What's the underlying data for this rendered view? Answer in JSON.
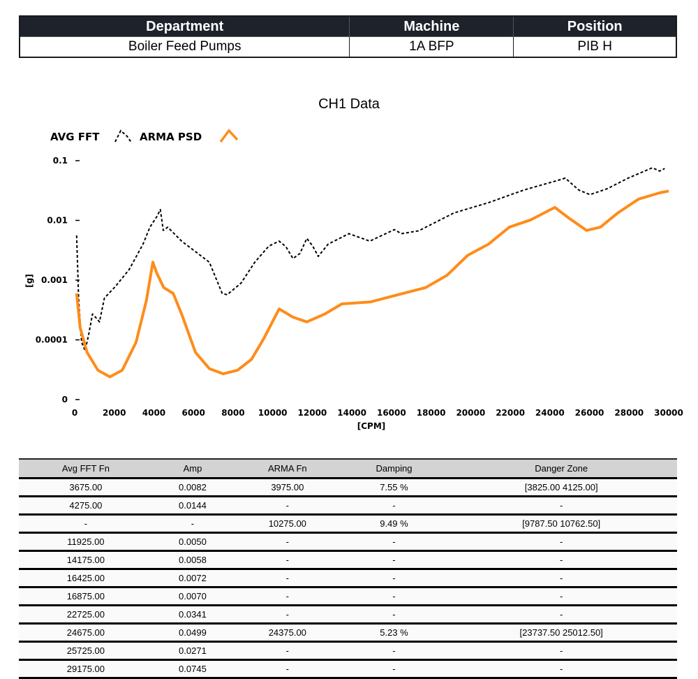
{
  "header": {
    "columns": [
      "Department",
      "Machine",
      "Position"
    ],
    "values": [
      "Boiler Feed Pumps",
      "1A BFP",
      "PIB H"
    ]
  },
  "chart_data": {
    "type": "line",
    "title": "CH1 Data",
    "xlabel": "[CPM]",
    "ylabel": "[g]",
    "xlim": [
      0,
      30000
    ],
    "ylim": [
      1e-05,
      0.1
    ],
    "yscale": "log",
    "grid": false,
    "legend": "top-left",
    "xticks": [
      "0",
      "2000",
      "4000",
      "6000",
      "8000",
      "10000",
      "12000",
      "14000",
      "16000",
      "18000",
      "20000",
      "22000",
      "24000",
      "26000",
      "28000",
      "30000"
    ],
    "yticks": [
      {
        "label": "0",
        "value": 1e-05
      },
      {
        "label": "0.0001",
        "value": 0.0001
      },
      {
        "label": "0.001",
        "value": 0.001
      },
      {
        "label": "0.01",
        "value": 0.01
      },
      {
        "label": "0.1",
        "value": 0.1
      }
    ],
    "series": [
      {
        "name": "AVG FFT",
        "color": "#000000",
        "style": "dashed",
        "x": [
          100,
          200,
          350,
          525,
          700,
          900,
          1100,
          1250,
          1500,
          2050,
          2750,
          3450,
          3800,
          4150,
          4325,
          4475,
          4700,
          5400,
          6800,
          7450,
          7700,
          8400,
          9100,
          9800,
          10325,
          10675,
          11025,
          11375,
          11725,
          12025,
          12300,
          12800,
          13850,
          14900,
          16150,
          16500,
          17375,
          19150,
          20900,
          22675,
          24425,
          24775,
          25475,
          26025,
          26900,
          27950,
          29175,
          29550,
          29800
        ],
        "y": [
          0.0056,
          0.00046,
          9.1e-05,
          6.6e-05,
          0.00012,
          0.00027,
          0.00023,
          0.0002,
          0.0005,
          0.00078,
          0.0015,
          0.004,
          0.0077,
          0.0116,
          0.0152,
          0.0068,
          0.0077,
          0.0045,
          0.002,
          0.0006,
          0.00057,
          0.00089,
          0.002,
          0.0037,
          0.0045,
          0.0036,
          0.0023,
          0.0028,
          0.005,
          0.0037,
          0.0025,
          0.004,
          0.006,
          0.0045,
          0.007,
          0.006,
          0.0067,
          0.0133,
          0.0198,
          0.0322,
          0.047,
          0.051,
          0.032,
          0.027,
          0.034,
          0.051,
          0.076,
          0.067,
          0.074
        ]
      },
      {
        "name": "ARMA PSD",
        "color": "#ff8c1a",
        "style": "solid",
        "x": [
          100,
          275,
          625,
          1175,
          1775,
          2400,
          3100,
          3625,
          3950,
          4150,
          4500,
          4975,
          5400,
          6100,
          6800,
          7500,
          8225,
          8925,
          9550,
          10325,
          11025,
          11725,
          12625,
          13500,
          14925,
          16325,
          17725,
          18800,
          19850,
          20900,
          21950,
          23025,
          24250,
          24950,
          25850,
          26550,
          27425,
          28475,
          29550,
          30000
        ],
        "y": [
          0.0006,
          0.00016,
          6.2e-05,
          3.1e-05,
          2.4e-05,
          3.1e-05,
          9.1e-05,
          0.00046,
          0.002,
          0.0013,
          0.00075,
          0.0006,
          0.00027,
          6.2e-05,
          3.3e-05,
          2.7e-05,
          3.1e-05,
          4.7e-05,
          0.000105,
          0.00033,
          0.00024,
          0.0002,
          0.00027,
          0.0004,
          0.00043,
          0.00057,
          0.00075,
          0.0012,
          0.0026,
          0.004,
          0.0077,
          0.0102,
          0.0165,
          0.011,
          0.0068,
          0.0077,
          0.0133,
          0.0227,
          0.029,
          0.031
        ]
      }
    ]
  },
  "table": {
    "columns": [
      "Avg FFT Fn",
      "Amp",
      "ARMA Fn",
      "Damping",
      "Danger Zone"
    ],
    "rows": [
      [
        "3675.00",
        "0.0082",
        "3975.00",
        "7.55 %",
        "[3825.00  4125.00]"
      ],
      [
        "4275.00",
        "0.0144",
        "-",
        "-",
        "-"
      ],
      [
        "-",
        "-",
        "10275.00",
        "9.49 %",
        "[9787.50  10762.50]"
      ],
      [
        "11925.00",
        "0.0050",
        "-",
        "-",
        "-"
      ],
      [
        "14175.00",
        "0.0058",
        "-",
        "-",
        "-"
      ],
      [
        "16425.00",
        "0.0072",
        "-",
        "-",
        "-"
      ],
      [
        "16875.00",
        "0.0070",
        "-",
        "-",
        "-"
      ],
      [
        "22725.00",
        "0.0341",
        "-",
        "-",
        "-"
      ],
      [
        "24675.00",
        "0.0499",
        "24375.00",
        "5.23 %",
        "[23737.50  25012.50]"
      ],
      [
        "25725.00",
        "0.0271",
        "-",
        "-",
        "-"
      ],
      [
        "29175.00",
        "0.0745",
        "-",
        "-",
        "-"
      ]
    ]
  }
}
